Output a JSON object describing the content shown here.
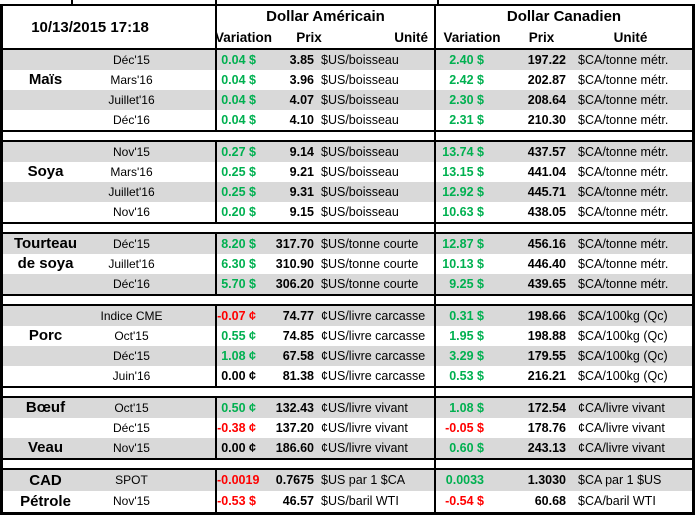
{
  "meta": {
    "timestamp": "10/13/2015 17:18"
  },
  "header": {
    "us_title": "Dollar Américain",
    "ca_title": "Dollar Canadien",
    "col_variation": "Variation",
    "col_prix": "Prix",
    "col_unite": "Unité"
  },
  "colors": {
    "positive": "#00B050",
    "negative": "#FF0000",
    "neutral": "#000000",
    "row_shade": "#D9D9D9",
    "border": "#000000"
  },
  "groups": [
    {
      "rows": [
        {
          "commodity": "",
          "label": "Déc'15",
          "us": {
            "variation": "0.04 $",
            "sign": "pos",
            "prix": "3.85",
            "unit": "$US/boisseau"
          },
          "ca": {
            "variation": "2.40 $",
            "sign": "pos",
            "prix": "197.22",
            "unit": "$CA/tonne métr."
          }
        },
        {
          "commodity": "Maïs",
          "label": "Mars'16",
          "us": {
            "variation": "0.04 $",
            "sign": "pos",
            "prix": "3.96",
            "unit": "$US/boisseau"
          },
          "ca": {
            "variation": "2.42 $",
            "sign": "pos",
            "prix": "202.87",
            "unit": "$CA/tonne métr."
          }
        },
        {
          "commodity": "",
          "label": "Juillet'16",
          "us": {
            "variation": "0.04 $",
            "sign": "pos",
            "prix": "4.07",
            "unit": "$US/boisseau"
          },
          "ca": {
            "variation": "2.30 $",
            "sign": "pos",
            "prix": "208.64",
            "unit": "$CA/tonne métr."
          }
        },
        {
          "commodity": "",
          "label": "Déc'16",
          "us": {
            "variation": "0.04 $",
            "sign": "pos",
            "prix": "4.10",
            "unit": "$US/boisseau"
          },
          "ca": {
            "variation": "2.31 $",
            "sign": "pos",
            "prix": "210.30",
            "unit": "$CA/tonne métr."
          }
        }
      ]
    },
    {
      "rows": [
        {
          "commodity": "",
          "label": "Nov'15",
          "us": {
            "variation": "0.27 $",
            "sign": "pos",
            "prix": "9.14",
            "unit": "$US/boisseau"
          },
          "ca": {
            "variation": "13.74 $",
            "sign": "pos",
            "prix": "437.57",
            "unit": "$CA/tonne métr."
          }
        },
        {
          "commodity": "Soya",
          "label": "Mars'16",
          "us": {
            "variation": "0.25 $",
            "sign": "pos",
            "prix": "9.21",
            "unit": "$US/boisseau"
          },
          "ca": {
            "variation": "13.15 $",
            "sign": "pos",
            "prix": "441.04",
            "unit": "$CA/tonne métr."
          }
        },
        {
          "commodity": "",
          "label": "Juillet'16",
          "us": {
            "variation": "0.25 $",
            "sign": "pos",
            "prix": "9.31",
            "unit": "$US/boisseau"
          },
          "ca": {
            "variation": "12.92 $",
            "sign": "pos",
            "prix": "445.71",
            "unit": "$CA/tonne métr."
          }
        },
        {
          "commodity": "",
          "label": "Nov'16",
          "us": {
            "variation": "0.20 $",
            "sign": "pos",
            "prix": "9.15",
            "unit": "$US/boisseau"
          },
          "ca": {
            "variation": "10.63 $",
            "sign": "pos",
            "prix": "438.05",
            "unit": "$CA/tonne métr."
          }
        }
      ]
    },
    {
      "rows": [
        {
          "commodity": "Tourteau",
          "label": "Déc'15",
          "us": {
            "variation": "8.20 $",
            "sign": "pos",
            "prix": "317.70",
            "unit": "$US/tonne courte"
          },
          "ca": {
            "variation": "12.87 $",
            "sign": "pos",
            "prix": "456.16",
            "unit": "$CA/tonne métr."
          }
        },
        {
          "commodity": "de soya",
          "label": "Juillet'16",
          "us": {
            "variation": "6.30 $",
            "sign": "pos",
            "prix": "310.90",
            "unit": "$US/tonne courte"
          },
          "ca": {
            "variation": "10.13 $",
            "sign": "pos",
            "prix": "446.40",
            "unit": "$CA/tonne métr."
          }
        },
        {
          "commodity": "",
          "label": "Déc'16",
          "us": {
            "variation": "5.70 $",
            "sign": "pos",
            "prix": "306.20",
            "unit": "$US/tonne courte"
          },
          "ca": {
            "variation": "9.25 $",
            "sign": "pos",
            "prix": "439.65",
            "unit": "$CA/tonne métr."
          }
        }
      ]
    },
    {
      "rows": [
        {
          "commodity": "",
          "label": "Indice CME",
          "us": {
            "variation": "-0.07 ¢",
            "sign": "neg",
            "prix": "74.77",
            "unit": "¢US/livre carcasse"
          },
          "ca": {
            "variation": "0.31 $",
            "sign": "pos",
            "prix": "198.66",
            "unit": "$CA/100kg (Qc)"
          }
        },
        {
          "commodity": "Porc",
          "label": "Oct'15",
          "us": {
            "variation": "0.55 ¢",
            "sign": "pos",
            "prix": "74.85",
            "unit": "¢US/livre carcasse"
          },
          "ca": {
            "variation": "1.95 $",
            "sign": "pos",
            "prix": "198.88",
            "unit": "$CA/100kg (Qc)"
          }
        },
        {
          "commodity": "",
          "label": "Déc'15",
          "us": {
            "variation": "1.08 ¢",
            "sign": "pos",
            "prix": "67.58",
            "unit": "¢US/livre carcasse"
          },
          "ca": {
            "variation": "3.29 $",
            "sign": "pos",
            "prix": "179.55",
            "unit": "$CA/100kg (Qc)"
          }
        },
        {
          "commodity": "",
          "label": "Juin'16",
          "us": {
            "variation": "0.00 ¢",
            "sign": "zero",
            "prix": "81.38",
            "unit": "¢US/livre carcasse"
          },
          "ca": {
            "variation": "0.53 $",
            "sign": "pos",
            "prix": "216.21",
            "unit": "$CA/100kg (Qc)"
          }
        }
      ]
    },
    {
      "rows": [
        {
          "commodity": "Bœuf",
          "label": "Oct'15",
          "us": {
            "variation": "0.50 ¢",
            "sign": "pos",
            "prix": "132.43",
            "unit": "¢US/livre vivant"
          },
          "ca": {
            "variation": "1.08 $",
            "sign": "pos",
            "prix": "172.54",
            "unit": "¢CA/livre vivant"
          }
        },
        {
          "commodity": "",
          "label": "Déc'15",
          "us": {
            "variation": "-0.38 ¢",
            "sign": "neg",
            "prix": "137.20",
            "unit": "¢US/livre vivant"
          },
          "ca": {
            "variation": "-0.05 $",
            "sign": "neg",
            "prix": "178.76",
            "unit": "¢CA/livre vivant"
          }
        },
        {
          "commodity": "Veau",
          "label": "Nov'15",
          "us": {
            "variation": "0.00 ¢",
            "sign": "zero",
            "prix": "186.60",
            "unit": "¢US/livre vivant"
          },
          "ca": {
            "variation": "0.60 $",
            "sign": "pos",
            "prix": "243.13",
            "unit": "¢CA/livre vivant"
          }
        }
      ]
    },
    {
      "rows": [
        {
          "commodity": "CAD",
          "label": "SPOT",
          "us": {
            "variation": "-0.0019",
            "sign": "neg",
            "prix": "0.7675",
            "unit": "$US par 1 $CA"
          },
          "ca": {
            "variation": "0.0033",
            "sign": "pos",
            "prix": "1.3030",
            "unit": "$CA par 1 $US"
          }
        },
        {
          "commodity": "Pétrole",
          "label": "Nov'15",
          "us": {
            "variation": "-0.53 $",
            "sign": "neg",
            "prix": "46.57",
            "unit": "$US/baril WTI"
          },
          "ca": {
            "variation": "-0.54 $",
            "sign": "neg",
            "prix": "60.68",
            "unit": "$CA/baril WTI"
          }
        }
      ]
    }
  ]
}
